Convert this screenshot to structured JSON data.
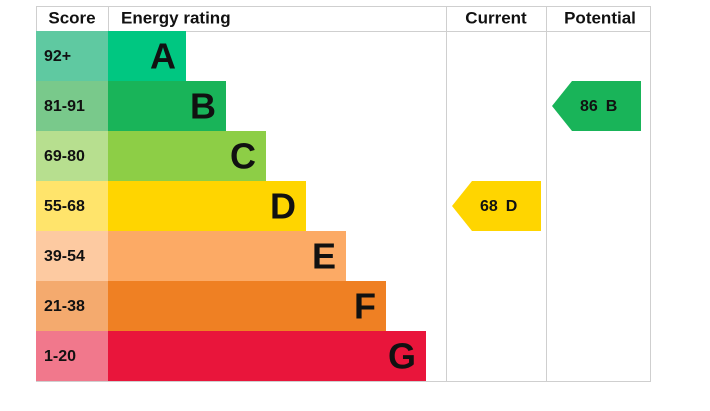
{
  "chart_data": {
    "type": "epc",
    "headers": {
      "score": "Score",
      "rating": "Energy rating",
      "current": "Current",
      "potential": "Potential"
    },
    "bands": [
      {
        "score": "92+",
        "letter": "A",
        "color": "#00c781",
        "light": "#5fc9a1"
      },
      {
        "score": "81-91",
        "letter": "B",
        "color": "#19b459",
        "light": "#79c98b"
      },
      {
        "score": "69-80",
        "letter": "C",
        "color": "#8dce46",
        "light": "#b7df8f"
      },
      {
        "score": "55-68",
        "letter": "D",
        "color": "#ffd500",
        "light": "#ffe46b"
      },
      {
        "score": "39-54",
        "letter": "E",
        "color": "#fcaa65",
        "light": "#fdcaa1"
      },
      {
        "score": "21-38",
        "letter": "F",
        "color": "#ef8023",
        "light": "#f4aa6e"
      },
      {
        "score": "1-20",
        "letter": "G",
        "color": "#e9153b",
        "light": "#f1788c"
      }
    ],
    "current": {
      "value": 68,
      "letter": "D"
    },
    "potential": {
      "value": 86,
      "letter": "B"
    }
  }
}
